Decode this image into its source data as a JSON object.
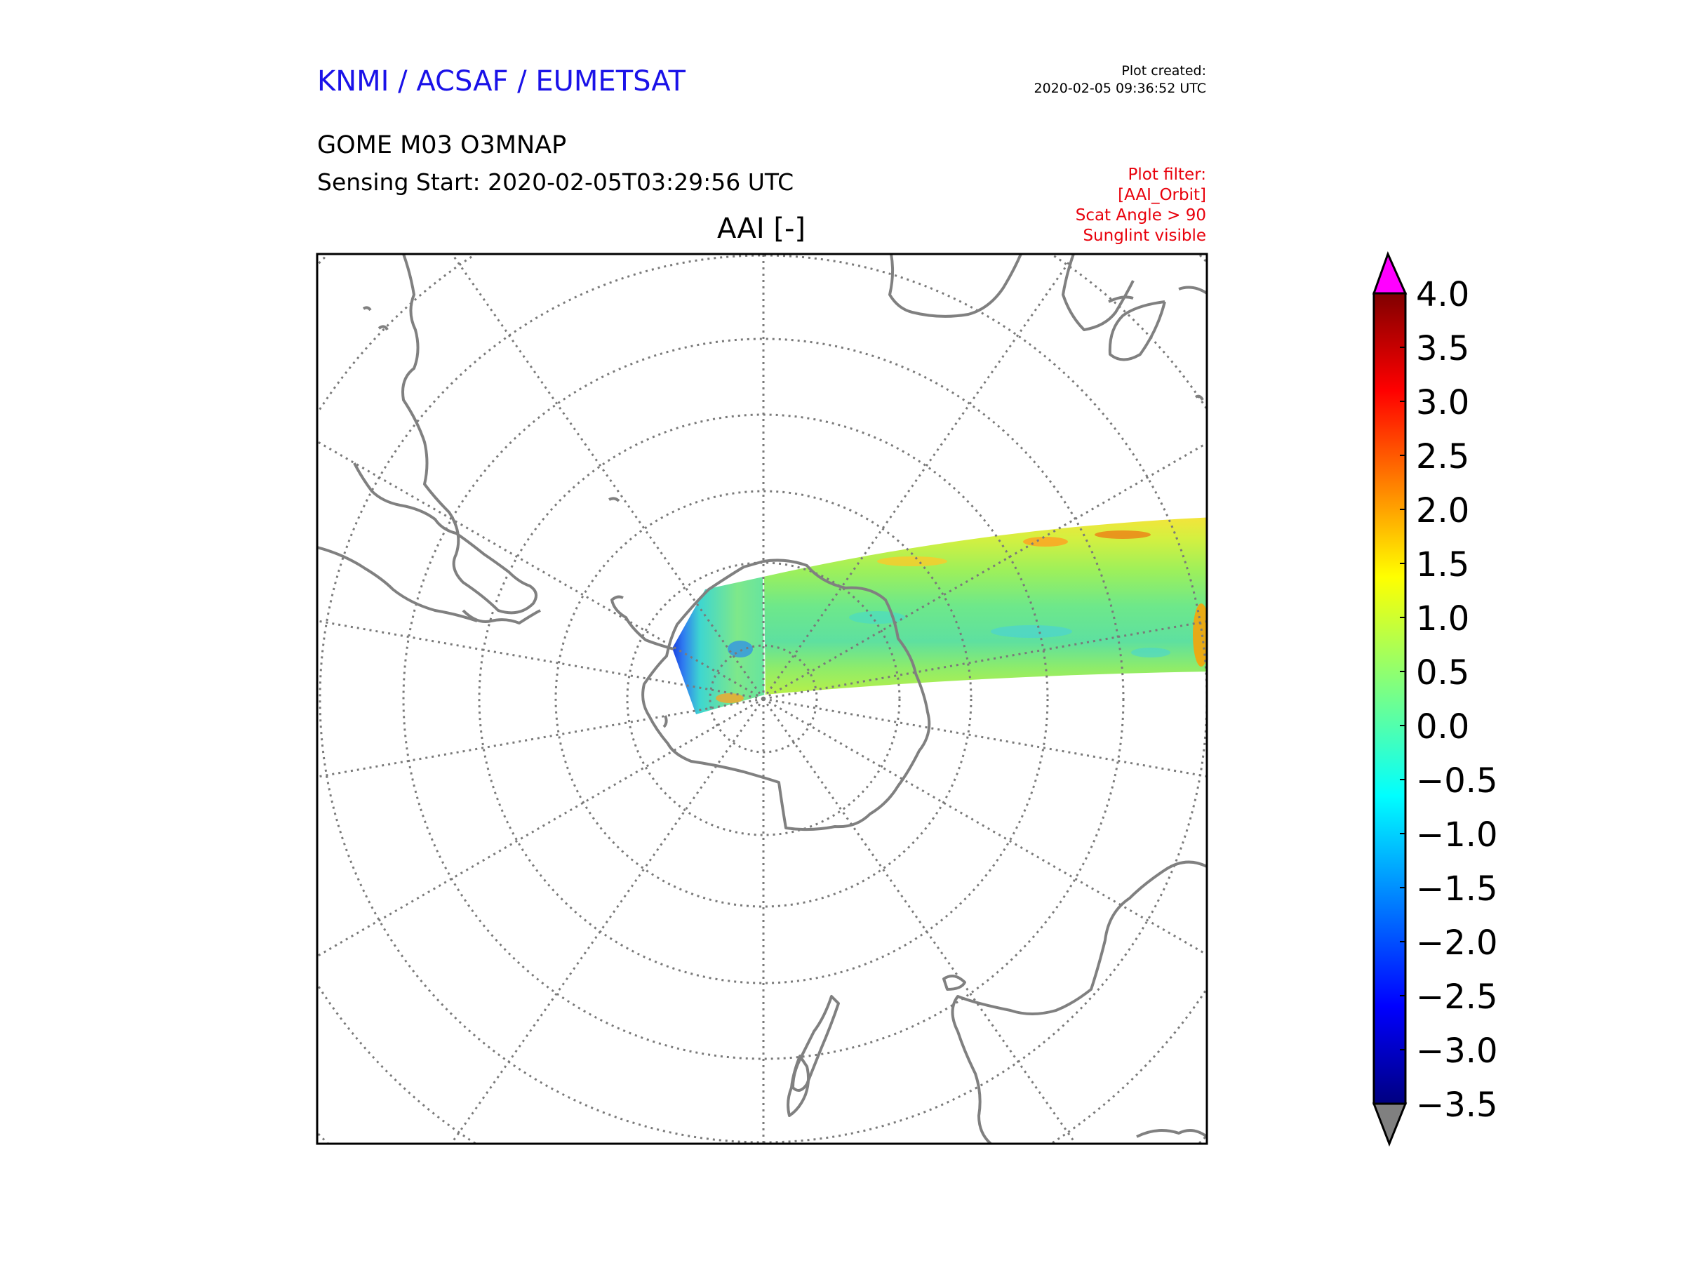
{
  "header": {
    "organization": "KNMI / ACSAF / EUMETSAT",
    "plot_created_label": "Plot created:",
    "plot_created_time": "2020-02-05 09:36:52 UTC",
    "product": "GOME M03 O3MNAP",
    "sensing_start": "Sensing Start: 2020-02-05T03:29:56 UTC",
    "plot_filter": [
      "Plot filter:",
      "[AAI_Orbit]",
      "Scat Angle > 90",
      "Sunglint visible"
    ]
  },
  "map": {
    "title": "AAI [-]",
    "projection": "south polar stereographic",
    "graticule_style": "dotted grey",
    "coastline_color": "#808080",
    "swath_range": [
      -3.5,
      4.0
    ]
  },
  "colorbar": {
    "ticks": [
      "4.0",
      "3.5",
      "3.0",
      "2.5",
      "2.0",
      "1.5",
      "1.0",
      "0.5",
      "0.0",
      "−0.5",
      "−1.0",
      "−1.5",
      "−2.0",
      "−2.5",
      "−3.0",
      "−3.5"
    ],
    "over_color": "#ff00ff",
    "under_color": "#808080",
    "colormap": "jet"
  },
  "colors": {
    "org_text": "#1a12e8",
    "filter_text": "#e8000b"
  }
}
